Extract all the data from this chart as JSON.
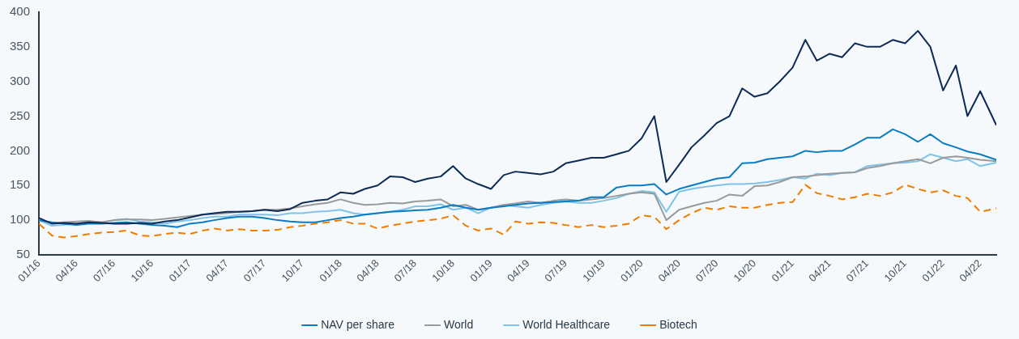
{
  "chart_data": {
    "type": "line",
    "x": [
      "2016-01",
      "2016-02",
      "2016-03",
      "2016-04",
      "2016-05",
      "2016-06",
      "2016-07",
      "2016-08",
      "2016-09",
      "2016-10",
      "2016-11",
      "2016-12",
      "2017-01",
      "2017-02",
      "2017-03",
      "2017-04",
      "2017-05",
      "2017-06",
      "2017-07",
      "2017-08",
      "2017-09",
      "2017-10",
      "2017-11",
      "2017-12",
      "2018-01",
      "2018-02",
      "2018-03",
      "2018-04",
      "2018-05",
      "2018-06",
      "2018-07",
      "2018-08",
      "2018-09",
      "2018-10",
      "2018-11",
      "2018-12",
      "2019-01",
      "2019-02",
      "2019-03",
      "2019-04",
      "2019-05",
      "2019-06",
      "2019-07",
      "2019-08",
      "2019-09",
      "2019-10",
      "2019-11",
      "2019-12",
      "2020-01",
      "2020-02",
      "2020-03",
      "2020-04",
      "2020-05",
      "2020-06",
      "2020-07",
      "2020-08",
      "2020-09",
      "2020-10",
      "2020-11",
      "2020-12",
      "2021-01",
      "2021-02",
      "2021-03",
      "2021-04",
      "2021-05",
      "2021-06",
      "2021-07",
      "2021-08",
      "2021-09",
      "2021-10",
      "2021-11",
      "2021-12",
      "2022-01",
      "2022-02",
      "2022-03",
      "2022-04",
      "2022-05-10"
    ],
    "series": [
      {
        "color": "#0d2b55",
        "values": [
          103,
          95,
          96,
          95,
          97,
          96,
          95,
          95,
          96,
          95,
          98,
          100,
          104,
          108,
          110,
          112,
          112,
          113,
          115,
          113,
          116,
          125,
          128,
          130,
          140,
          138,
          145,
          150,
          163,
          162,
          155,
          160,
          163,
          178,
          160,
          152,
          145,
          165,
          170,
          168,
          166,
          170,
          182,
          186,
          190,
          190,
          195,
          200,
          218,
          250,
          155,
          180,
          205,
          222,
          240,
          250,
          290,
          278,
          283,
          300,
          320,
          360,
          330,
          340,
          335,
          355,
          350,
          350,
          360,
          355,
          373,
          350,
          287,
          323,
          250,
          286,
          237
        ]
      },
      {
        "name": "NAV per share",
        "color": "#0a7cc1",
        "values": [
          100,
          97,
          95,
          93,
          95,
          95,
          96,
          97,
          95,
          93,
          92,
          90,
          95,
          97,
          100,
          103,
          105,
          105,
          103,
          100,
          98,
          97,
          97,
          100,
          103,
          105,
          108,
          110,
          112,
          113,
          114,
          115,
          118,
          122,
          118,
          115,
          118,
          120,
          122,
          124,
          125,
          126,
          127,
          128,
          133,
          133,
          147,
          150,
          150,
          152,
          137,
          145,
          150,
          155,
          160,
          162,
          182,
          183,
          188,
          190,
          192,
          200,
          198,
          200,
          200,
          209,
          219,
          219,
          231,
          224,
          213,
          224,
          211,
          205,
          199,
          195,
          187
        ]
      },
      {
        "name": "World",
        "color": "#9a9a9a",
        "values": [
          100,
          96,
          97,
          98,
          99,
          97,
          100,
          101,
          101,
          100,
          102,
          104,
          106,
          108,
          109,
          110,
          112,
          113,
          115,
          115,
          117,
          120,
          123,
          125,
          130,
          125,
          122,
          123,
          125,
          124,
          127,
          128,
          130,
          120,
          122,
          115,
          118,
          122,
          124,
          127,
          125,
          128,
          130,
          128,
          130,
          132,
          135,
          138,
          140,
          138,
          100,
          115,
          120,
          125,
          128,
          137,
          135,
          149,
          150,
          155,
          162,
          163,
          165,
          167,
          168,
          169,
          175,
          178,
          182,
          185,
          188,
          182,
          190,
          192,
          190,
          187,
          185
        ]
      },
      {
        "name": "World Healthcare",
        "color": "#7fc3e8",
        "values": [
          100,
          92,
          93,
          95,
          98,
          97,
          100,
          102,
          98,
          97,
          95,
          98,
          100,
          103,
          105,
          105,
          108,
          108,
          108,
          107,
          110,
          110,
          112,
          113,
          115,
          110,
          108,
          110,
          112,
          115,
          120,
          120,
          123,
          115,
          118,
          110,
          118,
          122,
          120,
          118,
          122,
          125,
          127,
          125,
          125,
          128,
          132,
          138,
          142,
          140,
          112,
          141,
          145,
          148,
          150,
          152,
          152,
          153,
          155,
          158,
          162,
          160,
          167,
          165,
          168,
          169,
          178,
          180,
          182,
          183,
          185,
          195,
          190,
          185,
          188,
          178,
          183
        ]
      },
      {
        "name": "Biotech",
        "color": "#f07d00",
        "line_style": "dashed",
        "values": [
          95,
          78,
          75,
          77,
          80,
          82,
          83,
          85,
          78,
          77,
          80,
          82,
          80,
          85,
          88,
          85,
          87,
          85,
          85,
          86,
          90,
          92,
          95,
          97,
          100,
          95,
          95,
          88,
          92,
          95,
          98,
          100,
          102,
          107,
          92,
          85,
          88,
          79,
          98,
          95,
          97,
          96,
          93,
          90,
          93,
          90,
          92,
          95,
          107,
          105,
          87,
          100,
          110,
          118,
          115,
          120,
          118,
          118,
          122,
          125,
          126,
          151,
          139,
          135,
          130,
          133,
          138,
          135,
          140,
          151,
          145,
          140,
          143,
          135,
          132,
          112,
          117
        ]
      }
    ],
    "xlim": [
      "2016-01",
      "2022-05-10"
    ],
    "xticks": [
      {
        "value": "2016-01",
        "label": "01/16"
      },
      {
        "value": "2016-04",
        "label": "04/16"
      },
      {
        "value": "2016-07",
        "label": "07/16"
      },
      {
        "value": "2016-10",
        "label": "10/16"
      },
      {
        "value": "2017-01",
        "label": "01/17"
      },
      {
        "value": "2017-04",
        "label": "04/17"
      },
      {
        "value": "2017-07",
        "label": "07/17"
      },
      {
        "value": "2017-10",
        "label": "10/17"
      },
      {
        "value": "2018-01",
        "label": "01/18"
      },
      {
        "value": "2018-04",
        "label": "04/18"
      },
      {
        "value": "2018-07",
        "label": "07/18"
      },
      {
        "value": "2018-10",
        "label": "10/18"
      },
      {
        "value": "2019-01",
        "label": "01/19"
      },
      {
        "value": "2019-04",
        "label": "04/19"
      },
      {
        "value": "2019-07",
        "label": "07/19"
      },
      {
        "value": "2019-10",
        "label": "10/19"
      },
      {
        "value": "2020-01",
        "label": "01/20"
      },
      {
        "value": "2020-04",
        "label": "04/20"
      },
      {
        "value": "2020-07",
        "label": "07/20"
      },
      {
        "value": "2020-10",
        "label": "10/20"
      },
      {
        "value": "2021-01",
        "label": "01/21"
      },
      {
        "value": "2021-04",
        "label": "04/21"
      },
      {
        "value": "2021-07",
        "label": "07/21"
      },
      {
        "value": "2021-10",
        "label": "10/21"
      },
      {
        "value": "2022-01",
        "label": "01/22"
      },
      {
        "value": "2022-04",
        "label": "04/22"
      }
    ],
    "ylim": [
      50,
      400
    ],
    "yticks": [
      50,
      100,
      150,
      200,
      250,
      300,
      350,
      400
    ],
    "grid": false,
    "legend": "bottom",
    "marker": "none"
  }
}
